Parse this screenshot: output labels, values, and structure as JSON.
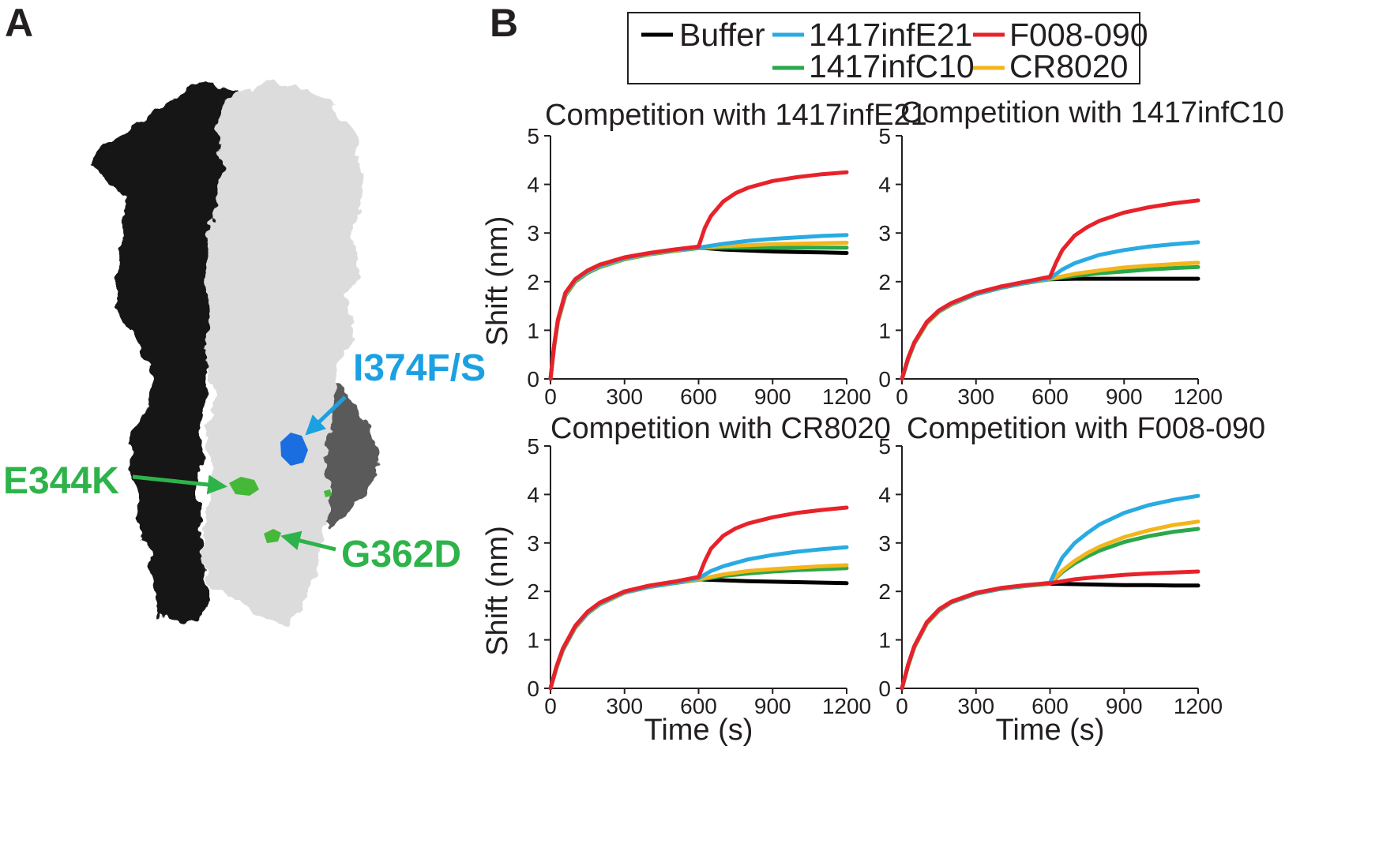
{
  "panels": {
    "a_letter": "A",
    "b_letter": "B"
  },
  "structure": {
    "labels": [
      {
        "text": "I374F/S",
        "color": "#1ba1e2"
      },
      {
        "text": "E344K",
        "color": "#2db34a"
      },
      {
        "text": "G362D",
        "color": "#2db34a"
      }
    ],
    "colors": {
      "left_monomer": "#1a1a1a",
      "right_monomer": "#e0e0e0",
      "back_monomer": "#5a5a5a",
      "blue_patch": "#1a6ee0",
      "green_patch": "#45b838"
    }
  },
  "legend": {
    "entries": [
      {
        "name": "Buffer",
        "color": "#000000"
      },
      {
        "name": "1417infE21",
        "color": "#29abe2"
      },
      {
        "name": "F008-090",
        "color": "#e8222a"
      },
      {
        "name": "1417infC10",
        "color": "#2aa84a"
      },
      {
        "name": "CR8020",
        "color": "#f3b51c"
      }
    ]
  },
  "chart_data": [
    {
      "type": "line",
      "title": "Competition with 1417infE21",
      "xlabel": "",
      "ylabel": "Shift (nm)",
      "xlim": [
        0,
        1200
      ],
      "ylim": [
        0,
        5
      ],
      "xticks": [
        0,
        300,
        600,
        900,
        1200
      ],
      "yticks": [
        0,
        1,
        2,
        3,
        4,
        5
      ],
      "series": [
        {
          "name": "Buffer",
          "color": "#000000",
          "x": [
            0,
            15,
            30,
            60,
            100,
            150,
            200,
            300,
            400,
            500,
            600,
            700,
            800,
            900,
            1000,
            1100,
            1200
          ],
          "y": [
            0,
            0.69,
            1.21,
            1.75,
            2.03,
            2.21,
            2.33,
            2.48,
            2.58,
            2.65,
            2.7,
            2.66,
            2.64,
            2.62,
            2.61,
            2.6,
            2.59
          ]
        },
        {
          "name": "1417infE21",
          "color": "#29abe2",
          "x": [
            0,
            15,
            30,
            60,
            100,
            150,
            200,
            300,
            400,
            500,
            600,
            700,
            800,
            900,
            1000,
            1100,
            1200
          ],
          "y": [
            0,
            0.69,
            1.21,
            1.75,
            2.03,
            2.21,
            2.33,
            2.48,
            2.58,
            2.65,
            2.7,
            2.78,
            2.84,
            2.88,
            2.91,
            2.94,
            2.96
          ]
        },
        {
          "name": "1417infC10",
          "color": "#2aa84a",
          "x": [
            0,
            15,
            30,
            60,
            100,
            150,
            200,
            300,
            400,
            500,
            600,
            700,
            800,
            900,
            1000,
            1100,
            1200
          ],
          "y": [
            0,
            0.66,
            1.17,
            1.71,
            2.0,
            2.18,
            2.3,
            2.46,
            2.56,
            2.63,
            2.69,
            2.7,
            2.7,
            2.7,
            2.7,
            2.7,
            2.7
          ]
        },
        {
          "name": "CR8020",
          "color": "#f3b51c",
          "x": [
            0,
            15,
            30,
            60,
            100,
            150,
            200,
            300,
            400,
            500,
            600,
            700,
            800,
            900,
            1000,
            1100,
            1200
          ],
          "y": [
            0,
            0.67,
            1.19,
            1.73,
            2.02,
            2.2,
            2.32,
            2.47,
            2.57,
            2.64,
            2.7,
            2.73,
            2.75,
            2.77,
            2.78,
            2.79,
            2.8
          ]
        },
        {
          "name": "F008-090",
          "color": "#e8222a",
          "x": [
            0,
            15,
            30,
            60,
            100,
            150,
            200,
            300,
            400,
            500,
            600,
            625,
            650,
            700,
            750,
            800,
            900,
            1000,
            1100,
            1200
          ],
          "y": [
            0,
            0.7,
            1.22,
            1.77,
            2.05,
            2.23,
            2.35,
            2.5,
            2.59,
            2.66,
            2.72,
            3.1,
            3.35,
            3.65,
            3.82,
            3.93,
            4.07,
            4.15,
            4.21,
            4.25
          ]
        }
      ]
    },
    {
      "type": "line",
      "title": "Competition with 1417infC10",
      "xlabel": "",
      "ylabel": "",
      "xlim": [
        0,
        1200
      ],
      "ylim": [
        0,
        5
      ],
      "xticks": [
        0,
        300,
        600,
        900,
        1200
      ],
      "yticks": [
        0,
        1,
        2,
        3,
        4,
        5
      ],
      "series": [
        {
          "name": "Buffer",
          "color": "#000000",
          "x": [
            0,
            25,
            50,
            100,
            150,
            200,
            300,
            400,
            500,
            600,
            700,
            800,
            900,
            1000,
            1100,
            1200
          ],
          "y": [
            0,
            0.42,
            0.74,
            1.16,
            1.4,
            1.55,
            1.75,
            1.88,
            1.98,
            2.05,
            2.06,
            2.06,
            2.06,
            2.06,
            2.06,
            2.06
          ]
        },
        {
          "name": "1417infE21",
          "color": "#29abe2",
          "x": [
            0,
            25,
            50,
            100,
            150,
            200,
            300,
            400,
            500,
            600,
            650,
            700,
            800,
            900,
            1000,
            1100,
            1200
          ],
          "y": [
            0,
            0.42,
            0.74,
            1.16,
            1.4,
            1.55,
            1.75,
            1.88,
            1.98,
            2.07,
            2.25,
            2.38,
            2.55,
            2.65,
            2.72,
            2.77,
            2.81
          ]
        },
        {
          "name": "1417infC10",
          "color": "#2aa84a",
          "x": [
            0,
            25,
            50,
            100,
            150,
            200,
            300,
            400,
            500,
            600,
            700,
            800,
            900,
            1000,
            1100,
            1200
          ],
          "y": [
            0,
            0.4,
            0.72,
            1.14,
            1.38,
            1.53,
            1.74,
            1.87,
            1.97,
            2.05,
            2.12,
            2.17,
            2.21,
            2.25,
            2.28,
            2.3
          ]
        },
        {
          "name": "CR8020",
          "color": "#f3b51c",
          "x": [
            0,
            25,
            50,
            100,
            150,
            200,
            300,
            400,
            500,
            600,
            700,
            800,
            900,
            1000,
            1100,
            1200
          ],
          "y": [
            0,
            0.41,
            0.73,
            1.15,
            1.39,
            1.54,
            1.75,
            1.88,
            1.98,
            2.06,
            2.16,
            2.23,
            2.29,
            2.33,
            2.36,
            2.39
          ]
        },
        {
          "name": "F008-090",
          "color": "#e8222a",
          "x": [
            0,
            25,
            50,
            100,
            150,
            200,
            300,
            400,
            500,
            600,
            625,
            650,
            700,
            750,
            800,
            900,
            1000,
            1100,
            1200
          ],
          "y": [
            0,
            0.43,
            0.75,
            1.17,
            1.41,
            1.56,
            1.77,
            1.9,
            2.0,
            2.1,
            2.4,
            2.65,
            2.95,
            3.12,
            3.25,
            3.42,
            3.53,
            3.61,
            3.67
          ]
        }
      ]
    },
    {
      "type": "line",
      "title": "Competition with CR8020",
      "xlabel": "Time (s)",
      "ylabel": "Shift (nm)",
      "xlim": [
        0,
        1200
      ],
      "ylim": [
        0,
        5
      ],
      "xticks": [
        0,
        300,
        600,
        900,
        1200
      ],
      "yticks": [
        0,
        1,
        2,
        3,
        4,
        5
      ],
      "series": [
        {
          "name": "Buffer",
          "color": "#000000",
          "x": [
            0,
            25,
            50,
            100,
            150,
            200,
            300,
            400,
            500,
            600,
            700,
            800,
            900,
            1000,
            1100,
            1200
          ],
          "y": [
            0,
            0.45,
            0.8,
            1.27,
            1.56,
            1.75,
            1.98,
            2.1,
            2.18,
            2.25,
            2.23,
            2.21,
            2.2,
            2.19,
            2.18,
            2.17
          ]
        },
        {
          "name": "1417infE21",
          "color": "#29abe2",
          "x": [
            0,
            25,
            50,
            100,
            150,
            200,
            300,
            400,
            500,
            600,
            650,
            700,
            800,
            900,
            1000,
            1100,
            1200
          ],
          "y": [
            0,
            0.45,
            0.8,
            1.27,
            1.56,
            1.75,
            1.98,
            2.1,
            2.18,
            2.27,
            2.42,
            2.52,
            2.66,
            2.75,
            2.82,
            2.87,
            2.91
          ]
        },
        {
          "name": "1417infC10",
          "color": "#2aa84a",
          "x": [
            0,
            25,
            50,
            100,
            150,
            200,
            300,
            400,
            500,
            600,
            700,
            800,
            900,
            1000,
            1100,
            1200
          ],
          "y": [
            0,
            0.43,
            0.78,
            1.25,
            1.54,
            1.73,
            1.97,
            2.09,
            2.17,
            2.24,
            2.32,
            2.37,
            2.41,
            2.44,
            2.46,
            2.48
          ]
        },
        {
          "name": "CR8020",
          "color": "#f3b51c",
          "x": [
            0,
            25,
            50,
            100,
            150,
            200,
            300,
            400,
            500,
            600,
            700,
            800,
            900,
            1000,
            1100,
            1200
          ],
          "y": [
            0,
            0.44,
            0.79,
            1.26,
            1.55,
            1.74,
            1.97,
            2.1,
            2.18,
            2.25,
            2.35,
            2.42,
            2.46,
            2.49,
            2.52,
            2.54
          ]
        },
        {
          "name": "F008-090",
          "color": "#e8222a",
          "x": [
            0,
            25,
            50,
            100,
            150,
            200,
            300,
            400,
            500,
            600,
            625,
            650,
            700,
            750,
            800,
            900,
            1000,
            1100,
            1200
          ],
          "y": [
            0,
            0.46,
            0.82,
            1.29,
            1.58,
            1.77,
            2.0,
            2.12,
            2.2,
            2.3,
            2.62,
            2.88,
            3.15,
            3.3,
            3.4,
            3.53,
            3.62,
            3.68,
            3.73
          ]
        }
      ]
    },
    {
      "type": "line",
      "title": "Competition with F008-090",
      "xlabel": "Time (s)",
      "ylabel": "",
      "xlim": [
        0,
        1200
      ],
      "ylim": [
        0,
        5
      ],
      "xticks": [
        0,
        300,
        600,
        900,
        1200
      ],
      "yticks": [
        0,
        1,
        2,
        3,
        4,
        5
      ],
      "series": [
        {
          "name": "Buffer",
          "color": "#000000",
          "x": [
            0,
            25,
            50,
            100,
            150,
            200,
            300,
            400,
            500,
            600,
            700,
            800,
            900,
            1000,
            1100,
            1200
          ],
          "y": [
            0,
            0.48,
            0.86,
            1.35,
            1.62,
            1.78,
            1.96,
            2.06,
            2.12,
            2.16,
            2.15,
            2.14,
            2.13,
            2.13,
            2.12,
            2.12
          ]
        },
        {
          "name": "1417infE21",
          "color": "#29abe2",
          "x": [
            0,
            25,
            50,
            100,
            150,
            200,
            300,
            400,
            500,
            600,
            625,
            650,
            700,
            750,
            800,
            900,
            1000,
            1100,
            1200
          ],
          "y": [
            0,
            0.48,
            0.86,
            1.35,
            1.62,
            1.78,
            1.96,
            2.06,
            2.12,
            2.18,
            2.45,
            2.7,
            3.0,
            3.2,
            3.38,
            3.62,
            3.78,
            3.89,
            3.97
          ]
        },
        {
          "name": "1417infC10",
          "color": "#2aa84a",
          "x": [
            0,
            25,
            50,
            100,
            150,
            200,
            300,
            400,
            500,
            600,
            650,
            700,
            750,
            800,
            900,
            1000,
            1100,
            1200
          ],
          "y": [
            0,
            0.46,
            0.84,
            1.33,
            1.6,
            1.77,
            1.95,
            2.05,
            2.11,
            2.16,
            2.4,
            2.58,
            2.72,
            2.84,
            3.02,
            3.14,
            3.23,
            3.29
          ]
        },
        {
          "name": "CR8020",
          "color": "#f3b51c",
          "x": [
            0,
            25,
            50,
            100,
            150,
            200,
            300,
            400,
            500,
            600,
            650,
            700,
            750,
            800,
            900,
            1000,
            1100,
            1200
          ],
          "y": [
            0,
            0.47,
            0.85,
            1.34,
            1.61,
            1.78,
            1.96,
            2.06,
            2.12,
            2.17,
            2.43,
            2.63,
            2.79,
            2.92,
            3.12,
            3.26,
            3.37,
            3.44
          ]
        },
        {
          "name": "F008-090",
          "color": "#e8222a",
          "x": [
            0,
            25,
            50,
            100,
            150,
            200,
            300,
            400,
            500,
            600,
            700,
            800,
            900,
            1000,
            1100,
            1200
          ],
          "y": [
            0,
            0.49,
            0.87,
            1.36,
            1.63,
            1.79,
            1.97,
            2.07,
            2.13,
            2.17,
            2.25,
            2.3,
            2.34,
            2.37,
            2.39,
            2.41
          ]
        }
      ]
    }
  ]
}
